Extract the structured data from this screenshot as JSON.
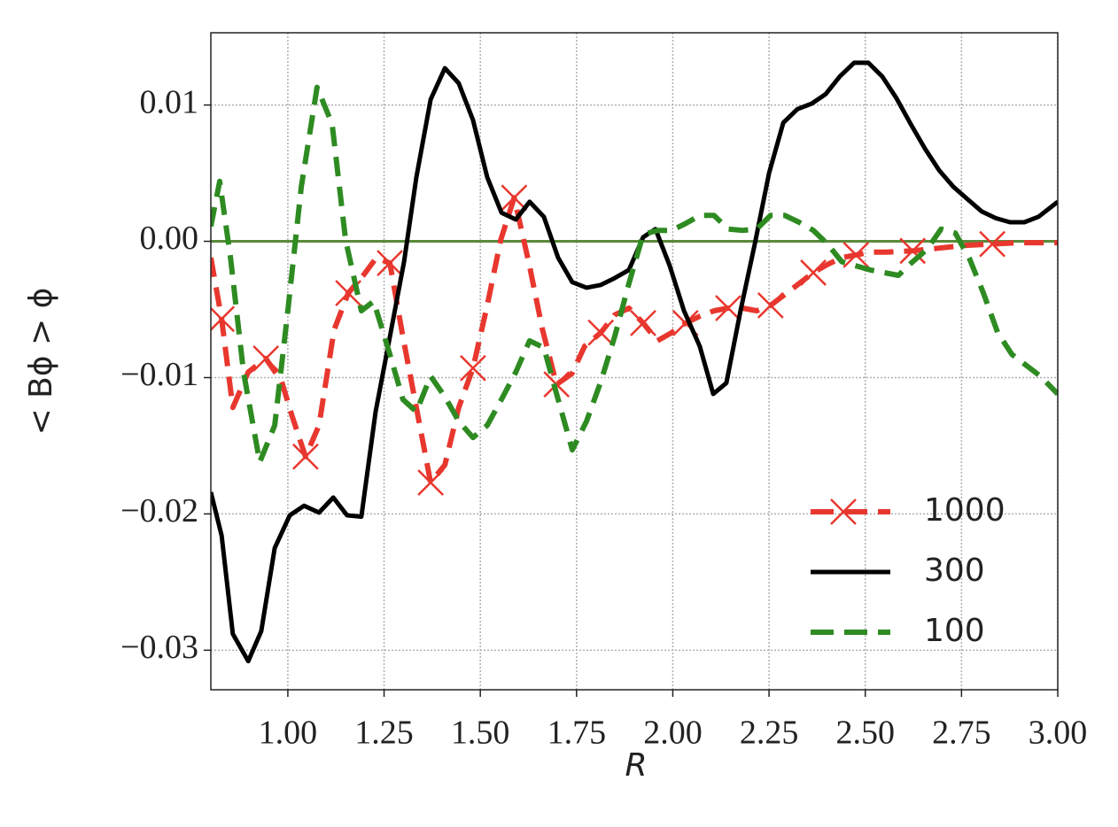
{
  "chart_data": {
    "type": "line",
    "xlabel": "R",
    "ylabel": "< Bϕ > ϕ",
    "xlim": [
      0.8,
      3.0
    ],
    "ylim": [
      -0.0329,
      0.0153
    ],
    "xticks": [
      {
        "value": 1.0,
        "label": "1.00"
      },
      {
        "value": 1.25,
        "label": "1.25"
      },
      {
        "value": 1.5,
        "label": "1.50"
      },
      {
        "value": 1.75,
        "label": "1.75"
      },
      {
        "value": 2.0,
        "label": "2.00"
      },
      {
        "value": 2.25,
        "label": "2.25"
      },
      {
        "value": 2.5,
        "label": "2.50"
      },
      {
        "value": 2.75,
        "label": "2.75"
      },
      {
        "value": 3.0,
        "label": "3.00"
      }
    ],
    "yticks": [
      0.01,
      {
        "value": 0,
        "label": "0.00"
      },
      {
        "value": -0.01,
        "label": "−0.01"
      },
      {
        "value": -0.02,
        "label": "−0.02"
      },
      {
        "value": -0.03,
        "label": "−0.03"
      }
    ],
    "grid": true,
    "legend": "lower right",
    "hline": {
      "value": 0,
      "color": "#5a8a3a"
    },
    "series": [
      {
        "name": "1000",
        "color": "#e8372e",
        "dash": "dashed",
        "marker": "x",
        "markevery": 3,
        "x": [
          0.8,
          0.828,
          0.857,
          0.897,
          0.943,
          0.984,
          1.012,
          1.046,
          1.081,
          1.12,
          1.157,
          1.196,
          1.23,
          1.265,
          1.299,
          1.334,
          1.371,
          1.408,
          1.444,
          1.481,
          1.518,
          1.553,
          1.588,
          1.627,
          1.661,
          1.698,
          1.738,
          1.771,
          1.813,
          1.849,
          1.886,
          1.923,
          1.96,
          1.997,
          2.033,
          2.07,
          2.107,
          2.144,
          2.181,
          2.218,
          2.254,
          2.291,
          2.328,
          2.365,
          2.402,
          2.439,
          2.476,
          2.513,
          2.554,
          2.623,
          2.692,
          2.761,
          2.83,
          2.899,
          3.0
        ],
        "values": [
          -0.0012,
          -0.0057,
          -0.0122,
          -0.0096,
          -0.0086,
          -0.0103,
          -0.0129,
          -0.0158,
          -0.0135,
          -0.0065,
          -0.0038,
          -0.0025,
          -0.0012,
          -0.0016,
          -0.007,
          -0.0122,
          -0.0177,
          -0.0164,
          -0.0122,
          -0.0093,
          -0.0047,
          0.0001,
          0.0032,
          -0.0017,
          -0.0064,
          -0.0105,
          -0.0097,
          -0.0077,
          -0.0067,
          -0.0054,
          -0.0049,
          -0.006,
          -0.0073,
          -0.0067,
          -0.006,
          -0.0055,
          -0.0051,
          -0.0049,
          -0.0049,
          -0.0051,
          -0.0047,
          -0.0039,
          -0.0031,
          -0.0023,
          -0.0017,
          -0.0012,
          -0.001,
          -0.0008,
          -0.0008,
          -0.0007,
          -0.0005,
          -0.0003,
          -0.0002,
          -0.0001,
          -0.0001
        ]
      },
      {
        "name": "300",
        "color": "#000000",
        "dash": "solid",
        "x": [
          0.8,
          0.828,
          0.857,
          0.897,
          0.931,
          0.966,
          1.005,
          1.042,
          1.081,
          1.118,
          1.154,
          1.191,
          1.228,
          1.265,
          1.302,
          1.334,
          1.371,
          1.408,
          1.444,
          1.481,
          1.518,
          1.555,
          1.592,
          1.628,
          1.665,
          1.702,
          1.739,
          1.776,
          1.813,
          1.849,
          1.886,
          1.923,
          1.955,
          1.992,
          2.029,
          2.07,
          2.105,
          2.139,
          2.176,
          2.213,
          2.25,
          2.287,
          2.324,
          2.361,
          2.397,
          2.434,
          2.471,
          2.508,
          2.544,
          2.581,
          2.618,
          2.655,
          2.692,
          2.729,
          2.765,
          2.802,
          2.839,
          2.876,
          2.913,
          2.95,
          3.0
        ],
        "values": [
          -0.0184,
          -0.0216,
          -0.0288,
          -0.0308,
          -0.0286,
          -0.0225,
          -0.0201,
          -0.0194,
          -0.0199,
          -0.0188,
          -0.0201,
          -0.0202,
          -0.0125,
          -0.007,
          -0.0015,
          0.0047,
          0.0104,
          0.0127,
          0.0116,
          0.0089,
          0.0047,
          0.0021,
          0.0016,
          0.0029,
          0.0018,
          -0.0012,
          -0.003,
          -0.0034,
          -0.0032,
          -0.0027,
          -0.0021,
          0.0003,
          0.0009,
          -0.0018,
          -0.0051,
          -0.0077,
          -0.0112,
          -0.0104,
          -0.0051,
          -0.0002,
          0.005,
          0.0087,
          0.0097,
          0.0101,
          0.0108,
          0.0121,
          0.0131,
          0.0131,
          0.0121,
          0.0105,
          0.0086,
          0.0068,
          0.0052,
          0.004,
          0.0031,
          0.0022,
          0.0017,
          0.0014,
          0.0014,
          0.0018,
          0.0029
        ]
      },
      {
        "name": "100",
        "color": "#2e8b22",
        "dash": "dashed",
        "x": [
          0.8,
          0.823,
          0.851,
          0.885,
          0.927,
          0.966,
          1.0,
          1.035,
          1.076,
          1.115,
          1.15,
          1.191,
          1.223,
          1.265,
          1.299,
          1.334,
          1.371,
          1.408,
          1.444,
          1.481,
          1.518,
          1.555,
          1.592,
          1.628,
          1.665,
          1.702,
          1.739,
          1.776,
          1.813,
          1.849,
          1.886,
          1.923,
          1.96,
          1.997,
          2.033,
          2.07,
          2.107,
          2.144,
          2.181,
          2.218,
          2.254,
          2.291,
          2.328,
          2.365,
          2.402,
          2.439,
          2.476,
          2.513,
          2.549,
          2.586,
          2.623,
          2.66,
          2.697,
          2.734,
          2.771,
          2.807,
          2.844,
          2.881,
          2.918,
          2.955,
          3.0
        ],
        "values": [
          0.0011,
          0.0044,
          -0.0012,
          -0.0096,
          -0.0162,
          -0.0135,
          -0.0051,
          0.004,
          0.0113,
          0.0086,
          0.0001,
          -0.0051,
          -0.0044,
          -0.0083,
          -0.0116,
          -0.0125,
          -0.0099,
          -0.0114,
          -0.0132,
          -0.0144,
          -0.0135,
          -0.0116,
          -0.0096,
          -0.0073,
          -0.0078,
          -0.0116,
          -0.0153,
          -0.0132,
          -0.0103,
          -0.007,
          -0.0031,
          0.0005,
          0.0008,
          0.0008,
          0.0013,
          0.0019,
          0.0019,
          0.0009,
          0.0008,
          0.0009,
          0.0019,
          0.0019,
          0.0014,
          0.0008,
          -0.0002,
          -0.0015,
          -0.0018,
          -0.0021,
          -0.0023,
          -0.0025,
          -0.0015,
          -0.0006,
          0.0009,
          0.0006,
          -0.0013,
          -0.0038,
          -0.0067,
          -0.0083,
          -0.0091,
          -0.0099,
          -0.0112
        ]
      }
    ]
  }
}
